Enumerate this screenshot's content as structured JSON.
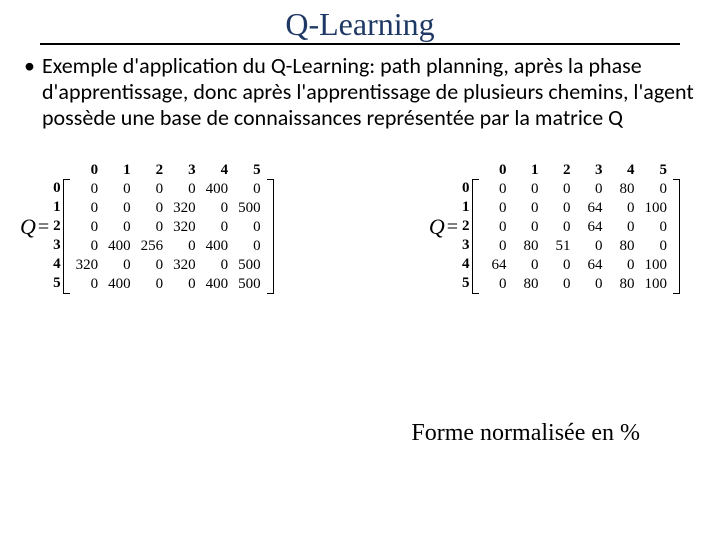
{
  "title": "Q-Learning",
  "bullet_text": "Exemple d'application du Q-Learning: path planning, après la phase d'apprentissage, donc après l'apprentissage de plusieurs chemins, l'agent possède une base de connaissances représentée par la matrice Q",
  "matrix_left": {
    "label": "Q",
    "eq": "=",
    "col_headers": [
      "0",
      "1",
      "2",
      "3",
      "4",
      "5"
    ],
    "row_headers": [
      "0",
      "1",
      "2",
      "3",
      "4",
      "5"
    ],
    "rows": [
      [
        "0",
        "0",
        "0",
        "0",
        "400",
        "0"
      ],
      [
        "0",
        "0",
        "0",
        "320",
        "0",
        "500"
      ],
      [
        "0",
        "0",
        "0",
        "320",
        "0",
        "0"
      ],
      [
        "0",
        "400",
        "256",
        "0",
        "400",
        "0"
      ],
      [
        "320",
        "0",
        "0",
        "320",
        "0",
        "500"
      ],
      [
        "0",
        "400",
        "0",
        "0",
        "400",
        "500"
      ]
    ]
  },
  "matrix_right": {
    "label": "Q",
    "eq": "=",
    "col_headers": [
      "0",
      "1",
      "2",
      "3",
      "4",
      "5"
    ],
    "row_headers": [
      "0",
      "1",
      "2",
      "3",
      "4",
      "5"
    ],
    "rows": [
      [
        "0",
        "0",
        "0",
        "0",
        "80",
        "0"
      ],
      [
        "0",
        "0",
        "0",
        "64",
        "0",
        "100"
      ],
      [
        "0",
        "0",
        "0",
        "64",
        "0",
        "0"
      ],
      [
        "0",
        "80",
        "51",
        "0",
        "80",
        "0"
      ],
      [
        "64",
        "0",
        "0",
        "64",
        "0",
        "100"
      ],
      [
        "0",
        "80",
        "0",
        "0",
        "80",
        "100"
      ]
    ]
  },
  "caption": "Forme normalisée en %"
}
